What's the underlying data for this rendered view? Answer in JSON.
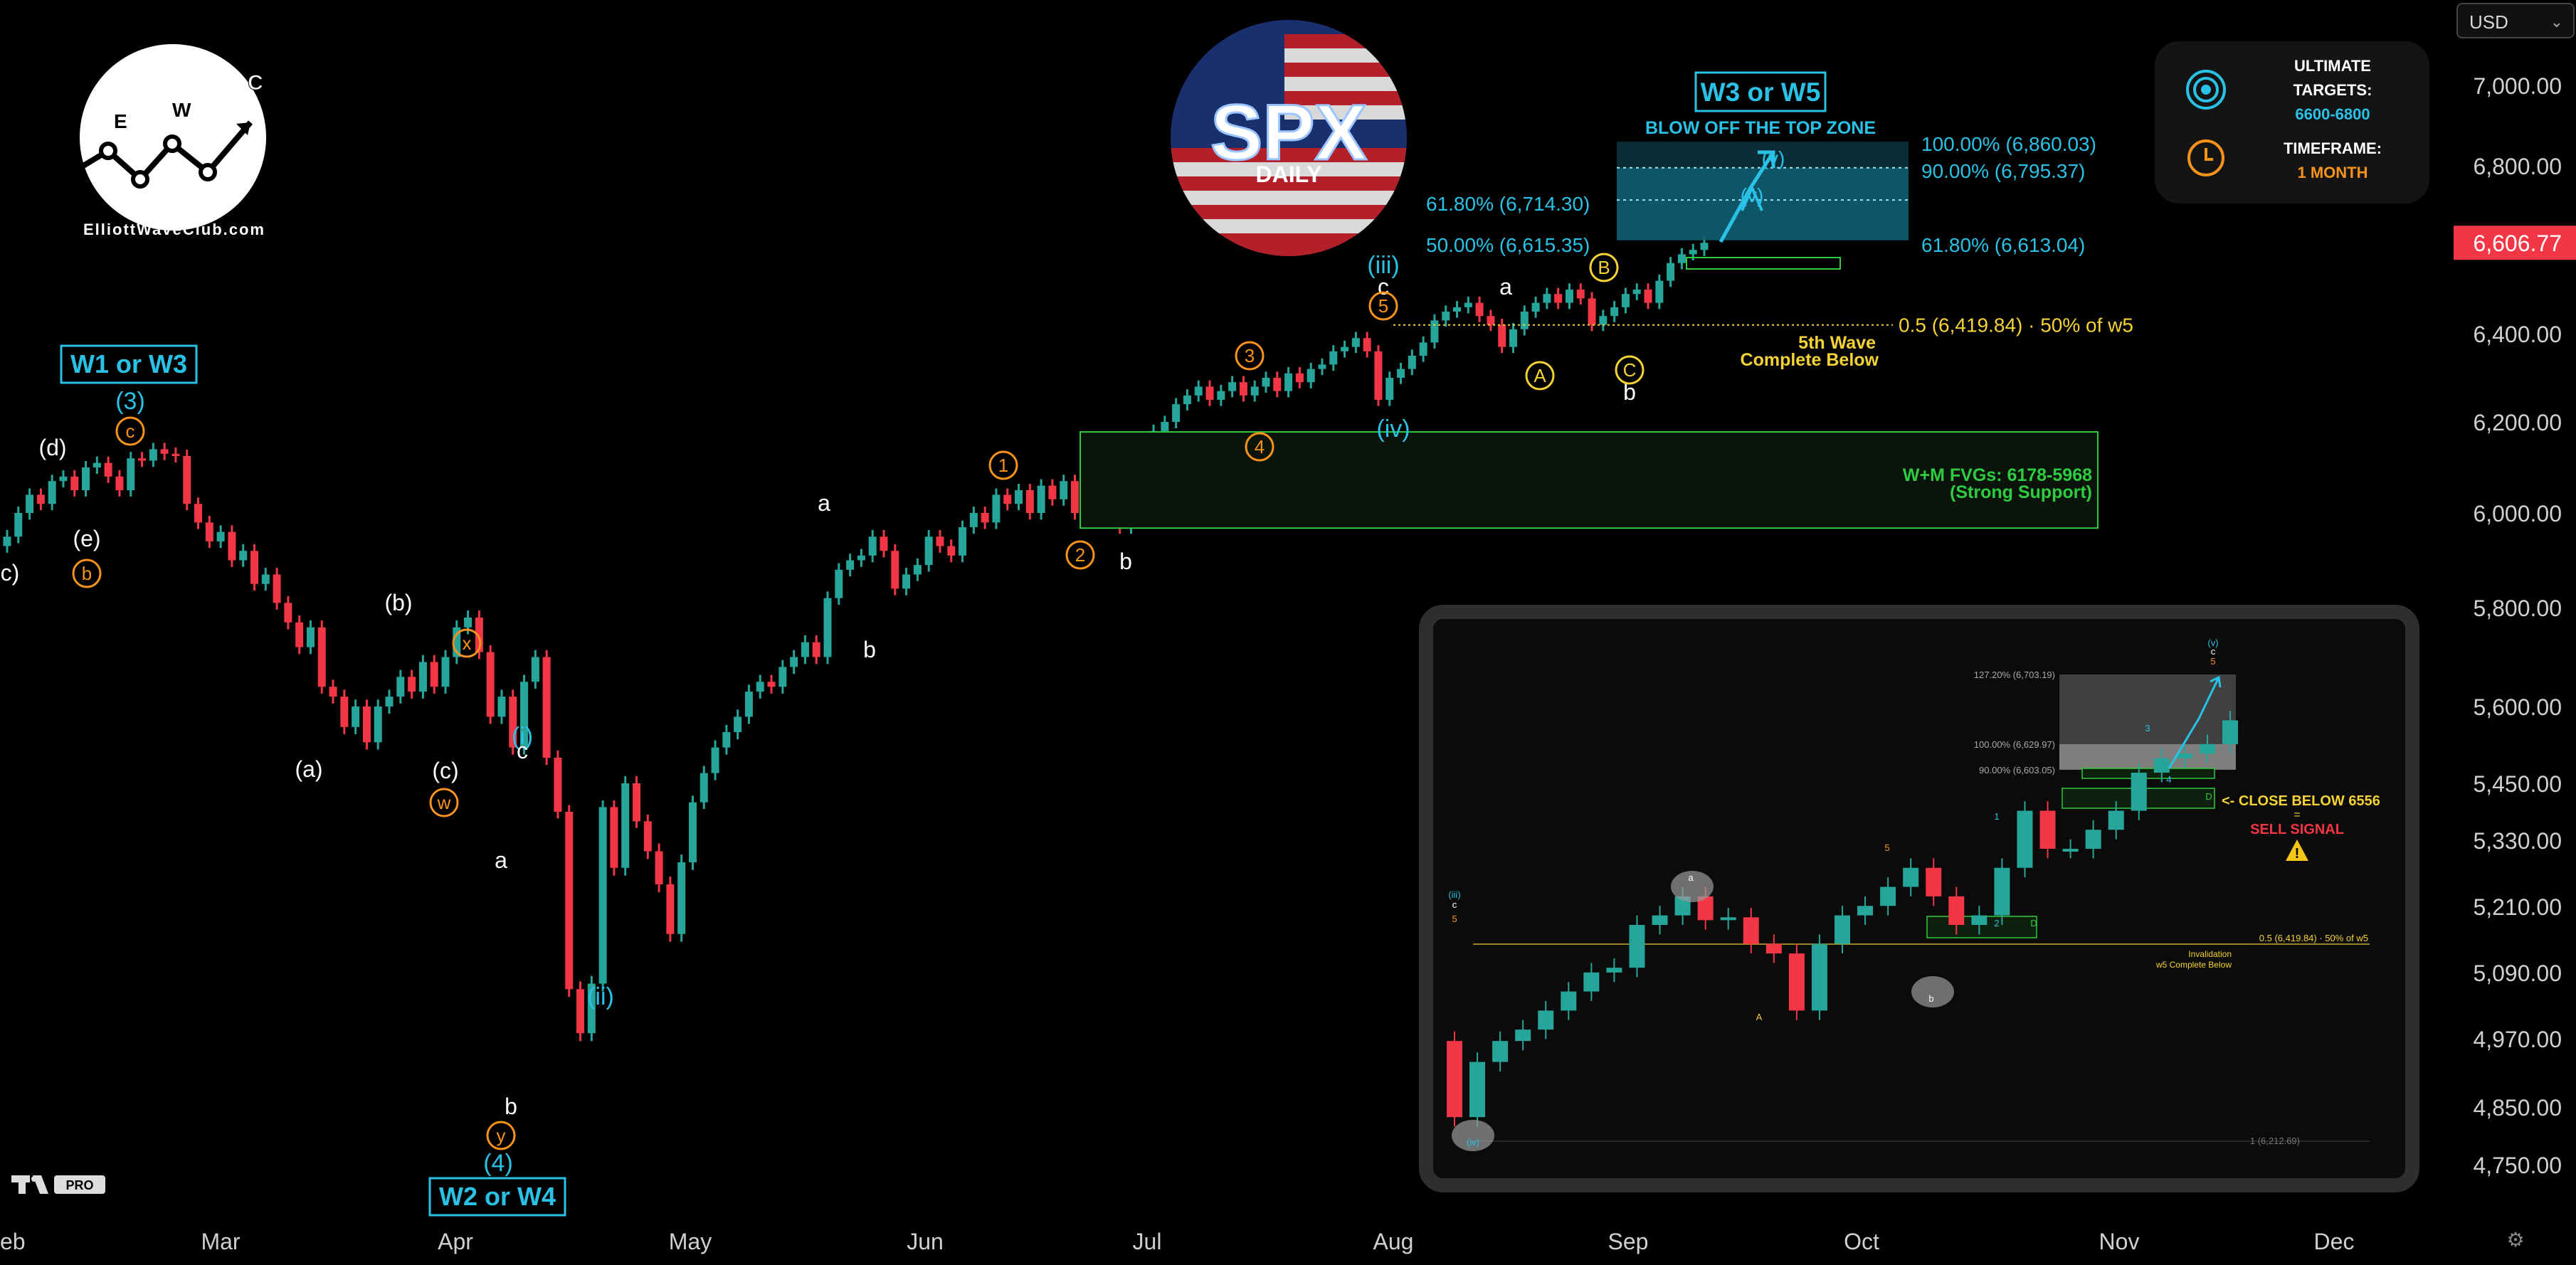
{
  "currency": {
    "label": "USD"
  },
  "brand": {
    "site": "ElliottWaveClub.com",
    "logo_letters": [
      "E",
      "W",
      "C"
    ],
    "spx_logo": "SPX",
    "spx_sub": "DAILY",
    "tradingview_badge": "PRO"
  },
  "targets_panel": {
    "title_1": "ULTIMATE",
    "title_2": "TARGETS:",
    "value": "6600-6800",
    "tf_title": "TIMEFRAME:",
    "tf_value": "1 MONTH",
    "icon_target": "target-icon",
    "icon_clock": "clock-icon"
  },
  "colors": {
    "up": "#26a69a",
    "down": "#f23645",
    "cyan": "#29c2e6",
    "orange": "#f7931a",
    "yellow": "#f5d335",
    "green_zone": "#2ecc40",
    "price_tag": "#f23645"
  },
  "chart_data": [
    {
      "type": "candlestick",
      "title": "SPX DAILY",
      "x_ticks": [
        "eb",
        "Mar",
        "Apr",
        "May",
        "Jun",
        "Jul",
        "Aug",
        "Sep",
        "Oct",
        "Nov",
        "Dec"
      ],
      "y_ticks": [
        "7,000.00",
        "6,800.00",
        "6,600.00",
        "6,400.00",
        "6,200.00",
        "6,000.00",
        "5,800.00",
        "5,600.00",
        "5,450.00",
        "5,330.00",
        "5,210.00",
        "5,090.00",
        "4,970.00",
        "4,850.00",
        "4,750.00"
      ],
      "ylim": [
        4700,
        7100
      ],
      "last_price": "6,606.77",
      "series": [
        {
          "name": "SPX daily",
          "closes": [
            5950,
            6000,
            6040,
            6020,
            6070,
            6080,
            6050,
            6100,
            6110,
            6080,
            6050,
            6120,
            6115,
            6140,
            6130,
            6125,
            6020,
            5980,
            5940,
            5960,
            5900,
            5920,
            5850,
            5870,
            5810,
            5770,
            5720,
            5760,
            5640,
            5620,
            5560,
            5600,
            5530,
            5600,
            5620,
            5660,
            5630,
            5690,
            5640,
            5700,
            5760,
            5780,
            5710,
            5580,
            5620,
            5520,
            5650,
            5700,
            5500,
            5390,
            5060,
            4980,
            5070,
            5400,
            5280,
            5450,
            5370,
            5310,
            5250,
            5160,
            5290,
            5410,
            5470,
            5520,
            5550,
            5580,
            5630,
            5650,
            5640,
            5680,
            5700,
            5730,
            5700,
            5820,
            5880,
            5900,
            5910,
            5950,
            5920,
            5840,
            5870,
            5890,
            5950,
            5930,
            5910,
            5970,
            6000,
            5980,
            6040,
            6020,
            6050,
            6000,
            6060,
            6030,
            6070,
            6000,
            5990,
            6020,
            6000,
            5970,
            6090,
            6130,
            6180,
            6200,
            6240,
            6260,
            6280,
            6250,
            6270,
            6290,
            6260,
            6280,
            6300,
            6270,
            6310,
            6290,
            6320,
            6330,
            6360,
            6370,
            6390,
            6360,
            6250,
            6300,
            6320,
            6350,
            6380,
            6430,
            6450,
            6460,
            6470,
            6440,
            6420,
            6370,
            6410,
            6450,
            6470,
            6490,
            6470,
            6500,
            6480,
            6420,
            6440,
            6460,
            6490,
            6500,
            6470,
            6520,
            6560,
            6580,
            6590,
            6606.77
          ]
        }
      ],
      "labels_cyan": [
        "W1 or W3",
        "(3)",
        "(4)",
        "W2 or W4",
        "(i)",
        "(ii)",
        "(iii)",
        "(iv)",
        "W3 or W5",
        "(v)",
        "(v)"
      ],
      "labels_white": [
        "(d)",
        "(e)",
        "c)",
        "(a)",
        "(b)",
        "(c)",
        "a",
        "b",
        "c",
        "a",
        "b",
        "a",
        "b",
        "c",
        "b"
      ],
      "labels_orange": [
        "c",
        "b",
        "x",
        "w",
        "y",
        "1",
        "2",
        "3",
        "4",
        "5"
      ],
      "labels_yellow": [
        "A",
        "B",
        "C"
      ],
      "zone_top": {
        "title": "BLOW OFF THE TOP ZONE",
        "fib_right_1": "100.00% (6,860.03)",
        "fib_right_2": "90.00% (6,795.37)",
        "fib_right_3": "61.80% (6,613.04)",
        "fib_left_1": "61.80% (6,714.30)",
        "fib_left_2": "50.00% (6,615.35)"
      },
      "fifth_wave": {
        "line": "0.5 (6,419.84) · 50% of w5",
        "text_1": "5th Wave",
        "text_2": "Complete Below"
      },
      "support_zone": {
        "text_1": "W+M FVGs: 6178-5968",
        "text_2": "(Strong Support)"
      }
    },
    {
      "type": "candlestick",
      "title": "inset",
      "fibs": [
        "127.20% (6,703.19)",
        "100.00% (6,629.97)",
        "90.00% (6,603.05)",
        "0.5 (6,419.84) · 50% of w5",
        "1 (6,212.69)"
      ],
      "close_below": "<- CLOSE BELOW 6556",
      "equals": "=",
      "sell": "SELL SIGNAL",
      "invalid_1": "Invalidation",
      "invalid_2": "w5 Complete Below",
      "wave_labels": [
        "(iii)",
        "c",
        "5",
        "(iv)",
        "a",
        "b",
        "5",
        "1",
        "2",
        "3",
        "4",
        "(v)",
        "c",
        "5",
        "A",
        "D",
        "D"
      ],
      "closes": [
        6238,
        6296,
        6318,
        6330,
        6350,
        6370,
        6390,
        6395,
        6440,
        6450,
        6470,
        6445,
        6448,
        6420,
        6410,
        6350,
        6420,
        6450,
        6460,
        6480,
        6500,
        6470,
        6440,
        6450,
        6500,
        6560,
        6520,
        6520,
        6540,
        6560,
        6600,
        6615,
        6620,
        6630,
        6655
      ]
    }
  ]
}
